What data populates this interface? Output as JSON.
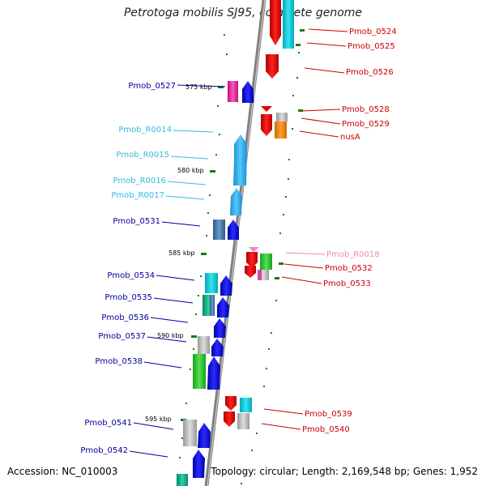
{
  "title": "Petrotoga mobilis SJ95, complete genome",
  "footer": {
    "accession": "Accession: NC_010003",
    "topology": "Topology: circular; Length: 2,169,548 bp; Genes: 1,952"
  },
  "ticks": [
    "575 kbp",
    "580 kbp",
    "585 kbp",
    "590 kbp",
    "595 kbp"
  ],
  "genes_left": [
    {
      "name": "Pmob_0527",
      "type": "CDS"
    },
    {
      "name": "Pmob_R0014",
      "type": "RNA"
    },
    {
      "name": "Pmob_R0015",
      "type": "RNA"
    },
    {
      "name": "Pmob_R0016",
      "type": "RNA"
    },
    {
      "name": "Pmob_R0017",
      "type": "RNA"
    },
    {
      "name": "Pmob_0531",
      "type": "CDS"
    },
    {
      "name": "Pmob_0534",
      "type": "CDS"
    },
    {
      "name": "Pmob_0535",
      "type": "CDS"
    },
    {
      "name": "Pmob_0536",
      "type": "CDS"
    },
    {
      "name": "Pmob_0537",
      "type": "CDS"
    },
    {
      "name": "Pmob_0538",
      "type": "CDS"
    },
    {
      "name": "Pmob_0541",
      "type": "CDS"
    },
    {
      "name": "Pmob_0542",
      "type": "CDS"
    }
  ],
  "genes_right": [
    {
      "name": "Pmob_0524",
      "type": "CDS"
    },
    {
      "name": "Pmob_0525",
      "type": "CDS"
    },
    {
      "name": "Pmob_0526",
      "type": "CDS"
    },
    {
      "name": "Pmob_0528",
      "type": "CDS"
    },
    {
      "name": "Pmob_0529",
      "type": "CDS"
    },
    {
      "name": "nusA",
      "type": "CDS"
    },
    {
      "name": "Pmob_R0018",
      "type": "RNA"
    },
    {
      "name": "Pmob_0532",
      "type": "CDS"
    },
    {
      "name": "Pmob_0533",
      "type": "CDS"
    },
    {
      "name": "Pmob_0539",
      "type": "CDS"
    },
    {
      "name": "Pmob_0540",
      "type": "CDS"
    }
  ],
  "colors": {
    "forward_label": "#000099",
    "reverse_label": "#cc0000",
    "rna_label_forward": "#33bbdd",
    "rna_label_reverse": "#ee88bb",
    "backbone": "#888888",
    "tick_mark": "#1a7a1a"
  }
}
